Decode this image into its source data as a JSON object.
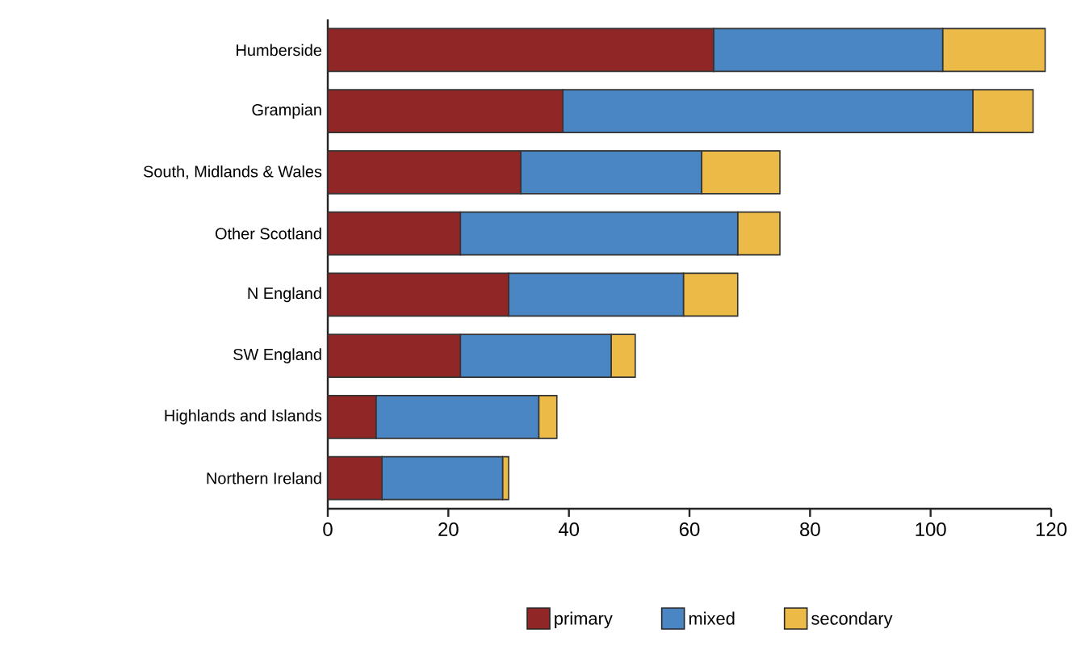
{
  "chart_data": {
    "type": "bar",
    "orientation": "horizontal",
    "stacked": true,
    "categories": [
      "Humberside",
      "Grampian",
      "South, Midlands & Wales",
      "Other Scotland",
      "N England",
      "SW England",
      "Highlands and Islands",
      "Northern Ireland"
    ],
    "series": [
      {
        "name": "primary",
        "color": "#912626",
        "values": [
          64,
          39,
          32,
          22,
          30,
          22,
          8,
          9
        ]
      },
      {
        "name": "mixed",
        "color": "#4a85c4",
        "values": [
          38,
          68,
          30,
          46,
          29,
          25,
          27,
          20
        ]
      },
      {
        "name": "secondary",
        "color": "#ecba47",
        "values": [
          17,
          10,
          13,
          7,
          9,
          4,
          3,
          1
        ]
      }
    ],
    "xlim": [
      0,
      120
    ],
    "xticks": [
      0,
      20,
      40,
      60,
      80,
      100,
      120
    ],
    "grid": false,
    "legend": "bottom"
  }
}
